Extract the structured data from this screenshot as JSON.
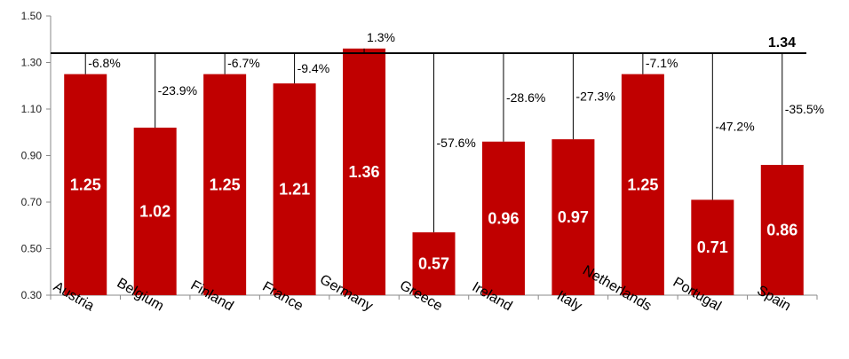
{
  "chart_data": {
    "type": "bar",
    "categories": [
      "Austria",
      "Belgium",
      "Finland",
      "France",
      "Germany",
      "Greece",
      "Ireland",
      "Italy",
      "Netherlands",
      "Portugal",
      "Spain"
    ],
    "values": [
      1.25,
      1.02,
      1.25,
      1.21,
      1.36,
      0.57,
      0.96,
      0.97,
      1.25,
      0.71,
      0.86
    ],
    "value_labels": [
      "1.25",
      "1.02",
      "1.25",
      "1.21",
      "1.36",
      "0.57",
      "0.96",
      "0.97",
      "1.25",
      "0.71",
      "0.86"
    ],
    "gap_labels": [
      "-6.8%",
      "-23.9%",
      "-6.7%",
      "-9.4%",
      "1.3%",
      "-57.6%",
      "-28.6%",
      "-27.3%",
      "-7.1%",
      "-47.2%",
      "-35.5%"
    ],
    "reference_value": 1.34,
    "reference_label": "1.34",
    "yticks": [
      "0.30",
      "0.50",
      "0.70",
      "0.90",
      "1.10",
      "1.30",
      "1.50"
    ],
    "ylim": [
      0.3,
      1.5
    ],
    "bar_color": "#C00000",
    "grid": false,
    "title": "",
    "xlabel": "",
    "ylabel": ""
  }
}
